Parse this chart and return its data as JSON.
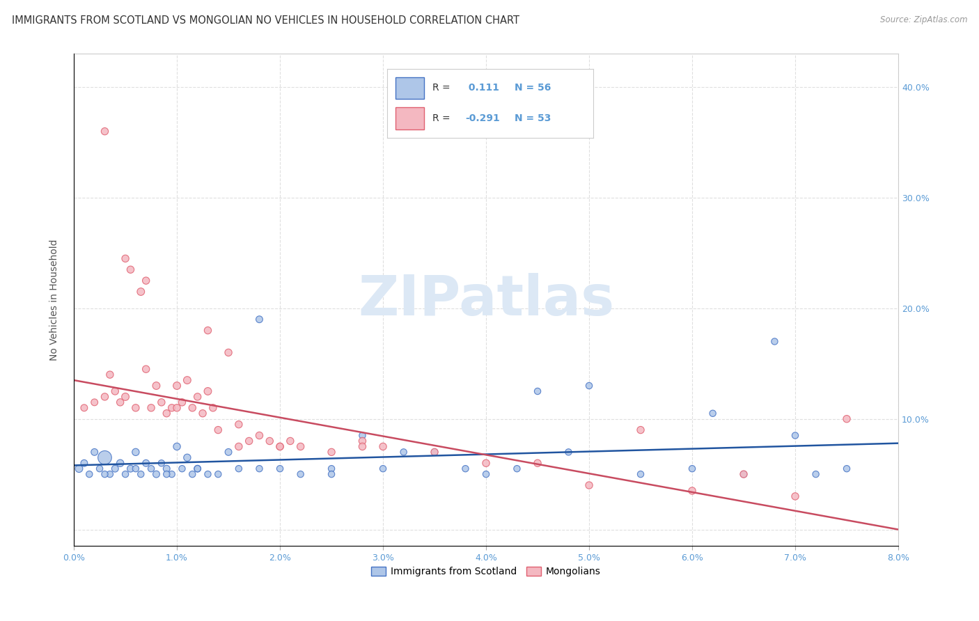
{
  "title": "IMMIGRANTS FROM SCOTLAND VS MONGOLIAN NO VEHICLES IN HOUSEHOLD CORRELATION CHART",
  "source": "Source: ZipAtlas.com",
  "ylabel": "No Vehicles in Household",
  "x_min": 0.0,
  "x_max": 8.0,
  "y_min": -1.5,
  "y_max": 43.0,
  "x_ticks": [
    0,
    1,
    2,
    3,
    4,
    5,
    6,
    7,
    8
  ],
  "y_ticks": [
    0,
    10,
    20,
    30,
    40
  ],
  "y_tick_labels": [
    "",
    "10.0%",
    "20.0%",
    "30.0%",
    "40.0%"
  ],
  "legend_r1": "R = ",
  "legend_v1": " 0.111",
  "legend_n1": "N = 56",
  "legend_r2": "R = ",
  "legend_v2": "-0.291",
  "legend_n2": "N = 53",
  "blue_color": "#aec6e8",
  "blue_edge_color": "#4472c4",
  "pink_color": "#f4b8c1",
  "pink_edge_color": "#e06070",
  "blue_line_color": "#2155a0",
  "pink_line_color": "#c84b60",
  "watermark": "ZIPatlas",
  "watermark_color": "#dce8f5",
  "blue_scatter_x": [
    0.05,
    0.1,
    0.15,
    0.2,
    0.25,
    0.3,
    0.35,
    0.4,
    0.45,
    0.5,
    0.55,
    0.6,
    0.65,
    0.7,
    0.75,
    0.8,
    0.85,
    0.9,
    0.95,
    1.0,
    1.05,
    1.1,
    1.15,
    1.2,
    1.3,
    1.4,
    1.5,
    1.6,
    1.8,
    2.0,
    2.2,
    2.5,
    2.8,
    3.0,
    3.2,
    3.5,
    3.8,
    4.0,
    4.3,
    4.5,
    5.0,
    5.5,
    6.0,
    6.2,
    6.5,
    7.0,
    7.2,
    7.5,
    0.3,
    0.6,
    0.9,
    1.2,
    1.8,
    2.5,
    4.8,
    6.8
  ],
  "blue_scatter_y": [
    5.5,
    6.0,
    5.0,
    7.0,
    5.5,
    6.5,
    5.0,
    5.5,
    6.0,
    5.0,
    5.5,
    7.0,
    5.0,
    6.0,
    5.5,
    5.0,
    6.0,
    5.5,
    5.0,
    7.5,
    5.5,
    6.5,
    5.0,
    5.5,
    5.0,
    5.0,
    7.0,
    5.5,
    19.0,
    5.5,
    5.0,
    5.5,
    8.5,
    5.5,
    7.0,
    7.0,
    5.5,
    5.0,
    5.5,
    12.5,
    13.0,
    5.0,
    5.5,
    10.5,
    5.0,
    8.5,
    5.0,
    5.5,
    5.0,
    5.5,
    5.0,
    5.5,
    5.5,
    5.0,
    7.0,
    17.0
  ],
  "blue_scatter_size": [
    60,
    50,
    45,
    50,
    45,
    200,
    45,
    50,
    55,
    45,
    50,
    55,
    45,
    50,
    45,
    50,
    45,
    50,
    45,
    55,
    45,
    55,
    45,
    50,
    45,
    45,
    50,
    45,
    50,
    45,
    45,
    45,
    45,
    45,
    45,
    45,
    45,
    45,
    45,
    45,
    45,
    45,
    45,
    45,
    45,
    45,
    45,
    45,
    45,
    45,
    45,
    45,
    45,
    45,
    45,
    45
  ],
  "pink_scatter_x": [
    0.1,
    0.2,
    0.3,
    0.35,
    0.4,
    0.45,
    0.5,
    0.55,
    0.6,
    0.65,
    0.7,
    0.75,
    0.8,
    0.85,
    0.9,
    0.95,
    1.0,
    1.05,
    1.1,
    1.15,
    1.2,
    1.25,
    1.3,
    1.35,
    1.4,
    1.5,
    1.6,
    1.7,
    1.8,
    1.9,
    2.0,
    2.1,
    2.2,
    2.5,
    2.8,
    3.0,
    3.5,
    4.0,
    4.5,
    5.0,
    5.5,
    6.0,
    6.5,
    7.0,
    7.5,
    0.3,
    0.5,
    0.7,
    1.0,
    1.3,
    1.6,
    2.0,
    2.8
  ],
  "pink_scatter_y": [
    11.0,
    11.5,
    12.0,
    14.0,
    12.5,
    11.5,
    12.0,
    23.5,
    11.0,
    21.5,
    14.5,
    11.0,
    13.0,
    11.5,
    10.5,
    11.0,
    13.0,
    11.5,
    13.5,
    11.0,
    12.0,
    10.5,
    12.5,
    11.0,
    9.0,
    16.0,
    9.5,
    8.0,
    8.5,
    8.0,
    7.5,
    8.0,
    7.5,
    7.0,
    8.0,
    7.5,
    7.0,
    6.0,
    6.0,
    4.0,
    9.0,
    3.5,
    5.0,
    3.0,
    10.0,
    36.0,
    24.5,
    22.5,
    11.0,
    18.0,
    7.5,
    7.5,
    7.5
  ],
  "pink_scatter_size": [
    50,
    50,
    55,
    55,
    55,
    55,
    60,
    55,
    55,
    60,
    55,
    55,
    60,
    55,
    55,
    55,
    60,
    55,
    60,
    55,
    55,
    55,
    60,
    55,
    55,
    55,
    55,
    55,
    55,
    55,
    55,
    55,
    55,
    55,
    55,
    55,
    55,
    55,
    55,
    55,
    55,
    55,
    55,
    55,
    55,
    55,
    55,
    55,
    55,
    55,
    55,
    55,
    55
  ],
  "blue_trend_x": [
    0.0,
    8.0
  ],
  "blue_trend_y": [
    5.8,
    7.8
  ],
  "pink_trend_x": [
    0.0,
    8.0
  ],
  "pink_trend_y": [
    13.5,
    0.0
  ],
  "grid_color": "#d8d8d8",
  "background_color": "#ffffff",
  "text_color": "#5b9bd5"
}
